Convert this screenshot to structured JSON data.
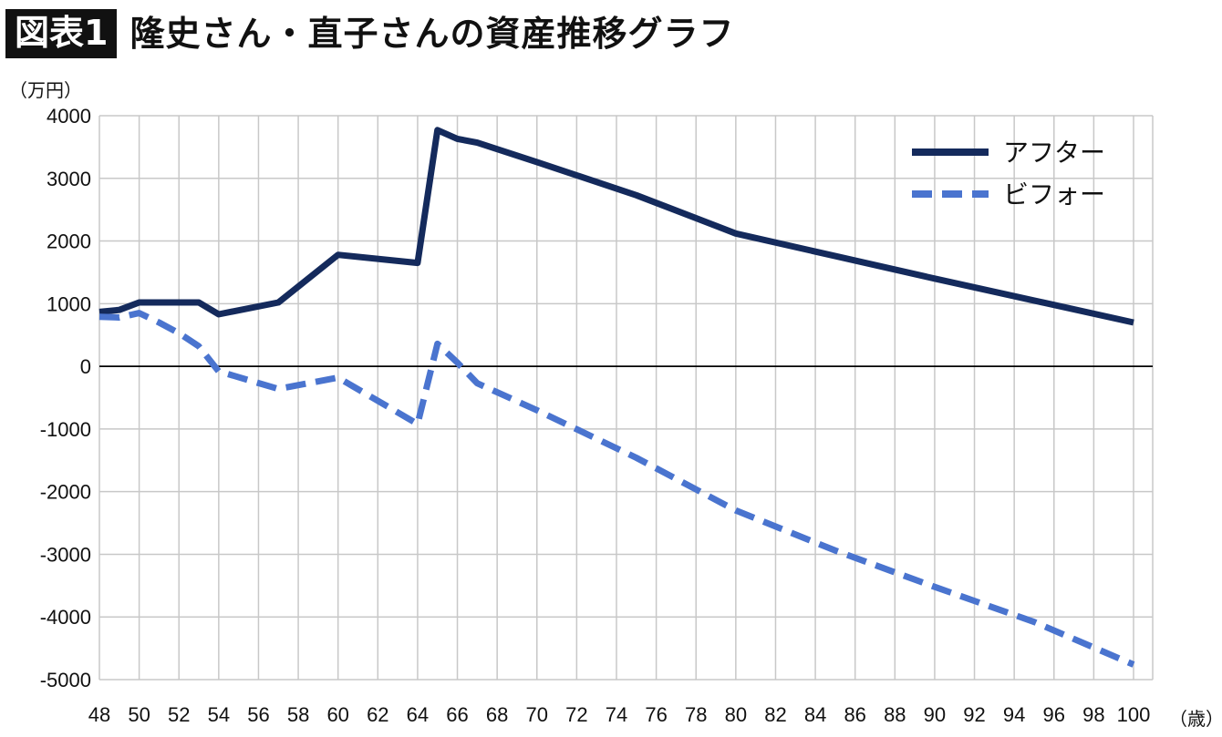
{
  "header": {
    "figure_label": "図表1",
    "title": "隆史さん・直子さんの資産推移グラフ"
  },
  "colors": {
    "after": "#142a5c",
    "before": "#4a74cf",
    "grid": "#c8c8c8",
    "zero_line": "#000000"
  },
  "chart_data": {
    "type": "line",
    "y_unit_label": "（万円）",
    "x_unit_label": "（歳）",
    "xlim": [
      48,
      100
    ],
    "ylim": [
      -5000,
      4000
    ],
    "y_ticks": [
      4000,
      3000,
      2000,
      1000,
      0,
      -1000,
      -2000,
      -3000,
      -4000,
      -5000
    ],
    "x_ticks": [
      48,
      50,
      52,
      54,
      56,
      58,
      60,
      62,
      64,
      66,
      68,
      70,
      72,
      74,
      76,
      78,
      80,
      82,
      84,
      86,
      88,
      90,
      92,
      94,
      96,
      98,
      100
    ],
    "grid": true,
    "legend_position": "top-right",
    "series": [
      {
        "name": "アフター",
        "style": "solid",
        "points": [
          [
            48,
            870
          ],
          [
            49,
            900
          ],
          [
            50,
            1020
          ],
          [
            51,
            1020
          ],
          [
            52,
            1020
          ],
          [
            53,
            1020
          ],
          [
            54,
            830
          ],
          [
            57,
            1020
          ],
          [
            60,
            1780
          ],
          [
            64,
            1650
          ],
          [
            65,
            3770
          ],
          [
            66,
            3630
          ],
          [
            67,
            3570
          ],
          [
            70,
            3260
          ],
          [
            75,
            2730
          ],
          [
            80,
            2120
          ],
          [
            85,
            1760
          ],
          [
            90,
            1400
          ],
          [
            95,
            1050
          ],
          [
            100,
            700
          ]
        ]
      },
      {
        "name": "ビフォー",
        "style": "dashed",
        "points": [
          [
            48,
            790
          ],
          [
            49,
            780
          ],
          [
            50,
            850
          ],
          [
            51,
            700
          ],
          [
            52,
            530
          ],
          [
            53,
            320
          ],
          [
            54,
            -80
          ],
          [
            57,
            -360
          ],
          [
            60,
            -180
          ],
          [
            64,
            -920
          ],
          [
            65,
            360
          ],
          [
            66,
            60
          ],
          [
            67,
            -270
          ],
          [
            70,
            -700
          ],
          [
            75,
            -1460
          ],
          [
            80,
            -2300
          ],
          [
            85,
            -2940
          ],
          [
            90,
            -3520
          ],
          [
            95,
            -4080
          ],
          [
            100,
            -4760
          ]
        ]
      }
    ]
  }
}
